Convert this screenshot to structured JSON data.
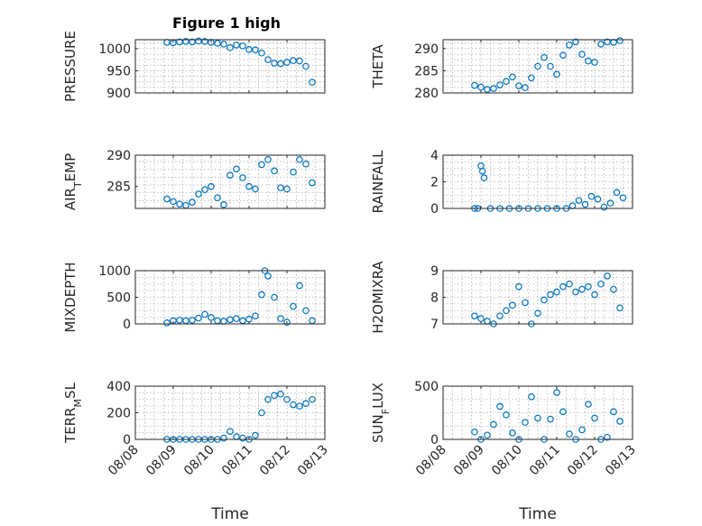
{
  "figure": {
    "title": "Figure 1 high"
  },
  "chart_data": [
    {
      "type": "scatter",
      "id": "pressure",
      "ylabel": "PRESSURE",
      "ylim": [
        900,
        1020
      ],
      "yticks": [
        900,
        950,
        1000
      ],
      "ytick_labels": [
        "900",
        "950",
        "1000"
      ],
      "grid": true,
      "x": [
        "08/08 20:00",
        "08/09 00:00",
        "08/09 04:00",
        "08/09 08:00",
        "08/09 12:00",
        "08/09 16:00",
        "08/09 20:00",
        "08/10 00:00",
        "08/10 04:00",
        "08/10 08:00",
        "08/10 12:00",
        "08/10 16:00",
        "08/10 20:00",
        "08/11 00:00",
        "08/11 04:00",
        "08/11 08:00",
        "08/11 12:00",
        "08/11 16:00",
        "08/11 20:00",
        "08/12 00:00",
        "08/12 04:00",
        "08/12 08:00",
        "08/12 12:00",
        "08/12 16:00"
      ],
      "y": [
        1014,
        1013,
        1015,
        1016,
        1015,
        1017,
        1016,
        1014,
        1012,
        1010,
        1002,
        1008,
        1006,
        998,
        997,
        990,
        975,
        967,
        966,
        969,
        973,
        972,
        960,
        924
      ]
    },
    {
      "type": "scatter",
      "id": "theta",
      "ylabel": "THETA",
      "ylim": [
        280,
        292
      ],
      "yticks": [
        280,
        285,
        290
      ],
      "ytick_labels": [
        "280",
        "285",
        "290"
      ],
      "grid": true,
      "x": [
        "08/08 20:00",
        "08/09 00:00",
        "08/09 04:00",
        "08/09 08:00",
        "08/09 12:00",
        "08/09 16:00",
        "08/09 20:00",
        "08/10 00:00",
        "08/10 04:00",
        "08/10 08:00",
        "08/10 12:00",
        "08/10 16:00",
        "08/10 20:00",
        "08/11 00:00",
        "08/11 04:00",
        "08/11 08:00",
        "08/11 12:00",
        "08/11 16:00",
        "08/11 20:00",
        "08/12 00:00",
        "08/12 04:00",
        "08/12 08:00",
        "08/12 12:00",
        "08/12 16:00"
      ],
      "y": [
        281.7,
        281.3,
        280.8,
        281.0,
        281.8,
        282.6,
        283.6,
        281.6,
        281.2,
        283.4,
        286.0,
        288.0,
        286.0,
        284.2,
        288.5,
        290.8,
        291.5,
        288.7,
        287.2,
        286.9,
        291.0,
        291.5,
        291.4,
        291.8
      ]
    },
    {
      "type": "scatter",
      "id": "air_temp",
      "ylabel": "AIR_TEMP",
      "ylim": [
        281.5,
        290
      ],
      "yticks": [
        285,
        290
      ],
      "ytick_labels": [
        "285",
        "290"
      ],
      "grid": true,
      "x": [
        "08/08 20:00",
        "08/09 00:00",
        "08/09 04:00",
        "08/09 08:00",
        "08/09 12:00",
        "08/09 16:00",
        "08/09 20:00",
        "08/10 00:00",
        "08/10 04:00",
        "08/10 08:00",
        "08/10 12:00",
        "08/10 16:00",
        "08/10 20:00",
        "08/11 00:00",
        "08/11 04:00",
        "08/11 08:00",
        "08/11 12:00",
        "08/11 16:00",
        "08/11 20:00",
        "08/12 00:00",
        "08/12 04:00",
        "08/12 08:00",
        "08/12 12:00",
        "08/12 16:00"
      ],
      "y": [
        283.0,
        282.6,
        282.2,
        282.0,
        282.5,
        283.8,
        284.5,
        285.0,
        283.2,
        282.1,
        286.8,
        287.8,
        286.4,
        285.0,
        284.6,
        288.5,
        289.3,
        287.5,
        284.8,
        284.6,
        287.3,
        289.3,
        288.6,
        285.6
      ]
    },
    {
      "type": "scatter",
      "id": "rainfall",
      "ylabel": "RAINFALL",
      "ylim": [
        0,
        4
      ],
      "yticks": [
        0,
        2,
        4
      ],
      "ytick_labels": [
        "0",
        "2",
        "4"
      ],
      "grid": true,
      "x": [
        "08/08 20:00",
        "08/08 22:00",
        "08/09 00:00",
        "08/09 01:00",
        "08/09 02:00",
        "08/09 06:00",
        "08/09 12:00",
        "08/09 18:00",
        "08/10 00:00",
        "08/10 06:00",
        "08/10 12:00",
        "08/10 18:00",
        "08/11 00:00",
        "08/11 06:00",
        "08/11 10:00",
        "08/11 14:00",
        "08/11 18:00",
        "08/11 22:00",
        "08/12 02:00",
        "08/12 06:00",
        "08/12 10:00",
        "08/12 14:00",
        "08/12 18:00"
      ],
      "y": [
        0,
        0,
        3.2,
        2.8,
        2.3,
        0,
        0,
        0,
        0,
        0,
        0,
        0,
        0,
        0,
        0.2,
        0.6,
        0.3,
        0.9,
        0.7,
        0.1,
        0.4,
        1.2,
        0.8
      ]
    },
    {
      "type": "scatter",
      "id": "mixdepth",
      "ylabel": "MIXDEPTH",
      "ylim": [
        0,
        1000
      ],
      "yticks": [
        0,
        500,
        1000
      ],
      "ytick_labels": [
        "0",
        "500",
        "1000"
      ],
      "grid": true,
      "x": [
        "08/08 20:00",
        "08/09 00:00",
        "08/09 04:00",
        "08/09 08:00",
        "08/09 12:00",
        "08/09 16:00",
        "08/09 20:00",
        "08/10 00:00",
        "08/10 04:00",
        "08/10 08:00",
        "08/10 12:00",
        "08/10 16:00",
        "08/10 20:00",
        "08/11 00:00",
        "08/11 04:00",
        "08/11 08:00",
        "08/11 10:00",
        "08/11 12:00",
        "08/11 16:00",
        "08/11 20:00",
        "08/12 00:00",
        "08/12 04:00",
        "08/12 08:00",
        "08/12 12:00",
        "08/12 16:00"
      ],
      "y": [
        20,
        60,
        70,
        60,
        70,
        110,
        180,
        120,
        60,
        50,
        80,
        100,
        60,
        90,
        150,
        550,
        1000,
        900,
        500,
        100,
        30,
        330,
        720,
        250,
        60
      ]
    },
    {
      "type": "scatter",
      "id": "h2omixra",
      "ylabel": "H2OMIXRA",
      "ylim": [
        7,
        9
      ],
      "yticks": [
        7,
        8,
        9
      ],
      "ytick_labels": [
        "7",
        "8",
        "9"
      ],
      "grid": true,
      "x": [
        "08/08 20:00",
        "08/09 00:00",
        "08/09 04:00",
        "08/09 08:00",
        "08/09 12:00",
        "08/09 16:00",
        "08/09 20:00",
        "08/10 00:00",
        "08/10 04:00",
        "08/10 08:00",
        "08/10 12:00",
        "08/10 16:00",
        "08/10 20:00",
        "08/11 00:00",
        "08/11 04:00",
        "08/11 08:00",
        "08/11 12:00",
        "08/11 16:00",
        "08/11 20:00",
        "08/12 00:00",
        "08/12 04:00",
        "08/12 08:00",
        "08/12 12:00",
        "08/12 16:00"
      ],
      "y": [
        7.3,
        7.2,
        7.1,
        7.0,
        7.3,
        7.5,
        7.7,
        8.4,
        7.8,
        7.0,
        7.4,
        7.9,
        8.1,
        8.2,
        8.4,
        8.5,
        8.2,
        8.3,
        8.4,
        8.1,
        8.5,
        8.8,
        8.3,
        7.6
      ]
    },
    {
      "type": "scatter",
      "id": "terr_msl",
      "ylabel": "TERR_MSL",
      "ylim": [
        0,
        400
      ],
      "yticks": [
        0,
        200,
        400
      ],
      "ytick_labels": [
        "0",
        "200",
        "400"
      ],
      "grid": true,
      "x": [
        "08/08 20:00",
        "08/09 00:00",
        "08/09 04:00",
        "08/09 08:00",
        "08/09 12:00",
        "08/09 16:00",
        "08/09 20:00",
        "08/10 00:00",
        "08/10 04:00",
        "08/10 08:00",
        "08/10 12:00",
        "08/10 16:00",
        "08/10 20:00",
        "08/11 00:00",
        "08/11 04:00",
        "08/11 08:00",
        "08/11 12:00",
        "08/11 16:00",
        "08/11 20:00",
        "08/12 00:00",
        "08/12 04:00",
        "08/12 08:00",
        "08/12 12:00",
        "08/12 16:00"
      ],
      "y": [
        0,
        0,
        0,
        0,
        0,
        0,
        0,
        0,
        0,
        10,
        60,
        20,
        10,
        0,
        30,
        200,
        300,
        330,
        340,
        300,
        260,
        250,
        270,
        300
      ]
    },
    {
      "type": "scatter",
      "id": "sun_flux",
      "ylabel": "SUN_FLUX",
      "ylim": [
        0,
        500
      ],
      "yticks": [
        0,
        500
      ],
      "ytick_labels": [
        "0",
        "500"
      ],
      "grid": true,
      "x": [
        "08/08 20:00",
        "08/09 00:00",
        "08/09 04:00",
        "08/09 08:00",
        "08/09 12:00",
        "08/09 16:00",
        "08/09 20:00",
        "08/10 00:00",
        "08/10 04:00",
        "08/10 08:00",
        "08/10 12:00",
        "08/10 16:00",
        "08/10 20:00",
        "08/11 00:00",
        "08/11 04:00",
        "08/11 08:00",
        "08/11 12:00",
        "08/11 16:00",
        "08/11 20:00",
        "08/12 00:00",
        "08/12 04:00",
        "08/12 08:00",
        "08/12 12:00",
        "08/12 16:00"
      ],
      "y": [
        70,
        0,
        40,
        140,
        310,
        230,
        60,
        0,
        160,
        400,
        200,
        0,
        190,
        440,
        260,
        50,
        0,
        90,
        330,
        200,
        0,
        20,
        260,
        170
      ]
    }
  ],
  "xaxis": {
    "label": "Time",
    "xlim": [
      "08/08 00:00",
      "08/13 00:00"
    ],
    "ticks": [
      "08/08 00:00",
      "08/09 00:00",
      "08/10 00:00",
      "08/11 00:00",
      "08/12 00:00",
      "08/13 00:00"
    ],
    "tick_labels": [
      "08/08",
      "08/09",
      "08/10",
      "08/11",
      "08/12",
      "08/13"
    ]
  },
  "colors": {
    "marker": "#0072bd",
    "axes": "#262626",
    "grid": "#b0b0b0"
  }
}
